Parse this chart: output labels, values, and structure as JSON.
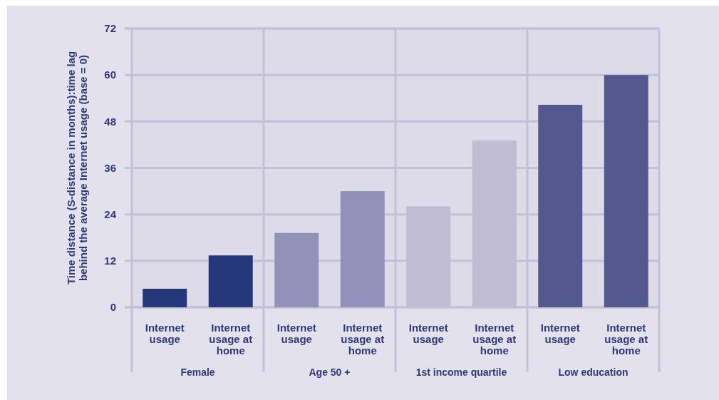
{
  "chart_data": {
    "type": "bar",
    "categories": [
      "Internet usage",
      "Internet usage at home",
      "Internet usage",
      "Internet usage at home",
      "Internet usage",
      "Internet usage at home",
      "Internet usage",
      "Internet usage at home"
    ],
    "values": [
      4.8,
      13.4,
      19.2,
      30,
      26.1,
      43.1,
      52.3,
      60
    ],
    "colors": [
      "#24377a",
      "#24377a",
      "#9391b9",
      "#9391b9",
      "#bfbcd4",
      "#bfbcd4",
      "#53588f",
      "#53588f"
    ],
    "ylabel": "Time distance (S-distance in months):time lag behind the average Internet usage (base = 0)",
    "ylim": [
      0,
      72
    ],
    "yticks": [
      0,
      12,
      24,
      36,
      48,
      60,
      72
    ],
    "grid": "y",
    "annotations": [
      "Female",
      "Age 50 +",
      "1st income quartile",
      "Low education"
    ]
  }
}
